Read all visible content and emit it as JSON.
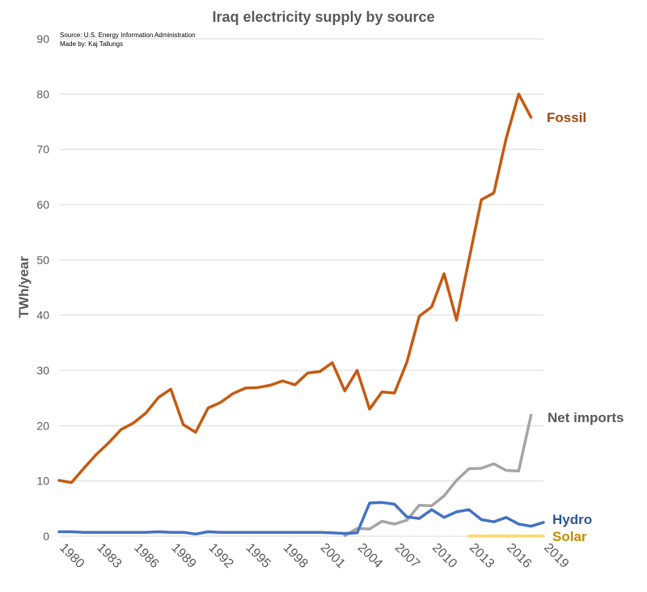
{
  "chart_data": {
    "type": "line",
    "title": "Iraq electricity supply by source",
    "source_note": "Source: U.S. Energy Information Administration",
    "made_by": "Made by: Kaj Tallungs",
    "ylabel": "TWh/year",
    "xlabel": "",
    "ylim": [
      0,
      90
    ],
    "yticks": [
      0,
      10,
      20,
      30,
      40,
      50,
      60,
      70,
      80,
      90
    ],
    "xlim": [
      1980,
      2019
    ],
    "xticks": [
      1980,
      1983,
      1986,
      1989,
      1992,
      1995,
      1998,
      2001,
      2004,
      2007,
      2010,
      2013,
      2016,
      2019
    ],
    "grid": true,
    "legend": "inline labels at right end of series",
    "series": [
      {
        "name": "Fossil",
        "color": "#C55A11",
        "label_color": "#9E480E",
        "x": [
          1980,
          1981,
          1982,
          1983,
          1984,
          1985,
          1986,
          1987,
          1988,
          1989,
          1990,
          1991,
          1992,
          1993,
          1994,
          1995,
          1996,
          1997,
          1998,
          1999,
          2000,
          2001,
          2002,
          2003,
          2004,
          2005,
          2006,
          2007,
          2008,
          2009,
          2010,
          2011,
          2012,
          2013,
          2014,
          2015,
          2016,
          2017,
          2018
        ],
        "values": [
          10.1,
          9.7,
          12.3,
          14.8,
          16.9,
          19.3,
          20.5,
          22.3,
          25.1,
          26.6,
          20.2,
          18.8,
          23.2,
          24.2,
          25.8,
          26.8,
          26.9,
          27.3,
          28.1,
          27.4,
          29.5,
          29.8,
          31.4,
          26.3,
          30.0,
          23.0,
          26.1,
          25.9,
          31.5,
          39.8,
          41.5,
          47.5,
          39.1,
          50.0,
          60.9,
          62.1,
          72.0,
          80.0,
          75.8
        ]
      },
      {
        "name": "Net imports",
        "color": "#A5A5A5",
        "label_color": "#595959",
        "x": [
          2003,
          2004,
          2005,
          2006,
          2007,
          2008,
          2009,
          2010,
          2011,
          2012,
          2013,
          2014,
          2015,
          2016,
          2017,
          2018
        ],
        "values": [
          0.1,
          1.4,
          1.3,
          2.7,
          2.2,
          2.9,
          5.6,
          5.5,
          7.3,
          10.1,
          12.2,
          12.3,
          13.1,
          11.9,
          11.8,
          21.9
        ]
      },
      {
        "name": "Hydro",
        "color": "#4472C4",
        "label_color": "#2F5597",
        "x": [
          1980,
          1981,
          1982,
          1983,
          1984,
          1985,
          1986,
          1987,
          1988,
          1989,
          1990,
          1991,
          1992,
          1993,
          1994,
          1995,
          1996,
          1997,
          1998,
          1999,
          2000,
          2001,
          2002,
          2003,
          2004,
          2005,
          2006,
          2007,
          2008,
          2009,
          2010,
          2011,
          2012,
          2013,
          2014,
          2015,
          2016,
          2017,
          2018,
          2019
        ],
        "values": [
          0.8,
          0.8,
          0.7,
          0.7,
          0.7,
          0.7,
          0.7,
          0.7,
          0.8,
          0.7,
          0.7,
          0.4,
          0.8,
          0.7,
          0.7,
          0.7,
          0.7,
          0.7,
          0.7,
          0.7,
          0.7,
          0.7,
          0.6,
          0.5,
          0.6,
          6.0,
          6.1,
          5.8,
          3.5,
          3.2,
          4.8,
          3.4,
          4.4,
          4.8,
          3.0,
          2.6,
          3.4,
          2.2,
          1.8,
          2.5
        ]
      },
      {
        "name": "Solar",
        "color": "#FFD966",
        "label_color": "#BF9000",
        "x": [
          2013,
          2014,
          2015,
          2016,
          2017,
          2018,
          2019
        ],
        "values": [
          0.05,
          0.05,
          0.05,
          0.05,
          0.05,
          0.05,
          0.05
        ]
      }
    ]
  }
}
